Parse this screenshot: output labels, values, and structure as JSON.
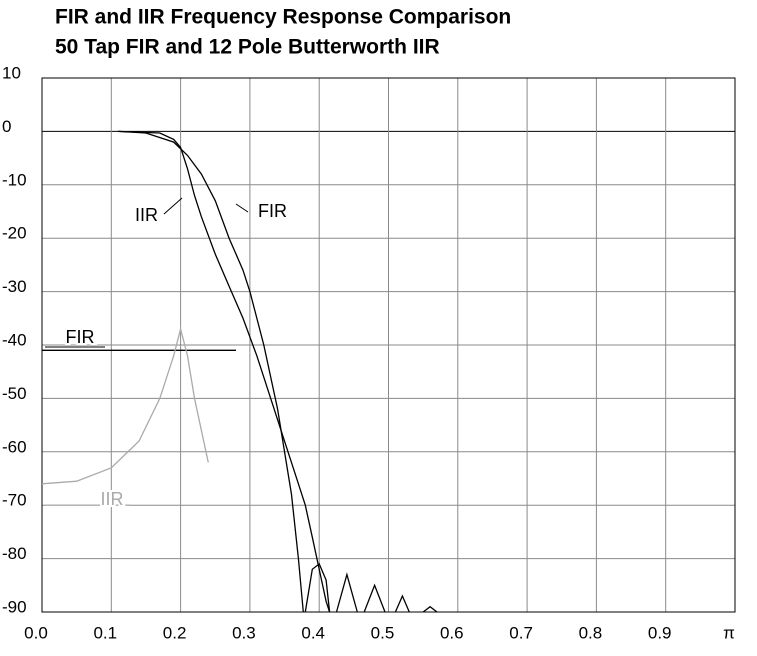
{
  "chart_data": {
    "type": "line",
    "title": "FIR and IIR Frequency Response Comparison",
    "subtitle": "50 Tap FIR  and  12 Pole Butterworth IIR",
    "xlim": [
      0,
      1
    ],
    "ylim": [
      -90,
      10
    ],
    "xticks": [
      {
        "value": 0,
        "label": "0.0"
      },
      0.1,
      0.2,
      0.3,
      0.4,
      0.5,
      0.6,
      0.7,
      0.8,
      0.9,
      {
        "value": 1,
        "label": "π"
      }
    ],
    "yticks": [
      10,
      0,
      -10,
      -20,
      -30,
      -40,
      -50,
      -60,
      -70,
      -80,
      -90
    ],
    "grid": true,
    "series": [
      {
        "name": "FIR",
        "color": "#000000",
        "x": [
          0.11,
          0.15,
          0.19,
          0.21,
          0.23,
          0.25,
          0.27,
          0.29,
          0.3,
          0.32,
          0.34,
          0.36,
          0.37,
          0.377,
          null,
          0.38,
          0.39,
          0.4,
          0.41,
          0.415,
          null,
          0.425,
          0.44,
          0.455,
          null,
          0.465,
          0.48,
          0.495,
          null,
          0.51,
          0.52,
          0.53,
          null,
          0.55,
          0.56,
          0.57
        ],
        "values": [
          0,
          -0.3,
          -2,
          -4.5,
          -8,
          -13,
          -20,
          -26,
          -30,
          -40,
          -52,
          -68,
          -80,
          -90,
          null,
          -90,
          -82,
          -81,
          -84,
          -90,
          null,
          -90,
          -83,
          -90,
          null,
          -90,
          -85,
          -90,
          null,
          -90,
          -87,
          -90,
          null,
          -90,
          -89,
          -90
        ]
      },
      {
        "name": "IIR",
        "color": "#000000",
        "x": [
          0.11,
          0.17,
          0.19,
          0.2,
          0.21,
          0.22,
          0.23,
          0.25,
          0.27,
          0.29,
          0.31,
          0.33,
          0.35,
          0.37,
          0.38,
          0.39,
          0.4,
          0.41,
          0.415
        ],
        "values": [
          0,
          -0.3,
          -1.5,
          -3,
          -7,
          -12,
          -16,
          -23,
          -29,
          -35,
          -42,
          -50,
          -58,
          -66,
          -70,
          -76,
          -82,
          -88,
          -90
        ]
      },
      {
        "name": "FIR",
        "color": "#000000",
        "x": [
          0,
          0.28
        ],
        "values": [
          -41,
          -41
        ]
      },
      {
        "name": "IIR",
        "color": "#aaaaaa",
        "x": [
          0,
          0.05,
          0.1,
          0.14,
          0.17,
          0.19,
          0.2,
          0.21,
          0.22,
          0.24
        ],
        "values": [
          -66,
          -65.5,
          -63,
          -58,
          -50,
          -42,
          -37,
          -42,
          -50,
          -62
        ]
      }
    ]
  }
}
